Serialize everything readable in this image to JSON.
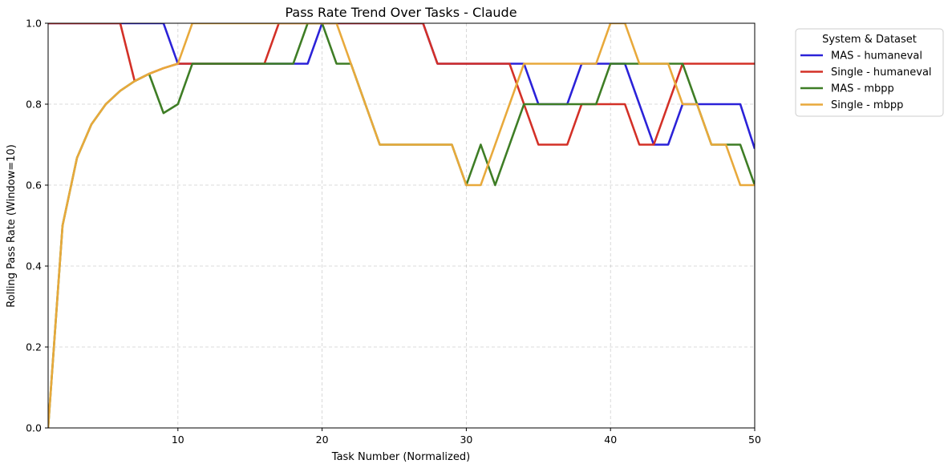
{
  "chart_data": {
    "type": "line",
    "title": "Pass Rate Trend Over Tasks - Claude",
    "xlabel": "Task Number (Normalized)",
    "ylabel": "Rolling Pass Rate (Window=10)",
    "xlim": [
      1,
      50
    ],
    "ylim": [
      0.0,
      1.0
    ],
    "xticks": [
      10,
      20,
      30,
      40,
      50
    ],
    "yticks": [
      0.0,
      0.2,
      0.4,
      0.6,
      0.8,
      1.0
    ],
    "xtick_labels": [
      "10",
      "20",
      "30",
      "40",
      "50"
    ],
    "ytick_labels": [
      "0.0",
      "0.2",
      "0.4",
      "0.6",
      "0.8",
      "1.0"
    ],
    "grid": true,
    "legend": {
      "title": "System & Dataset",
      "placement": "outside-upper-right"
    },
    "x": [
      1,
      2,
      3,
      4,
      5,
      6,
      7,
      8,
      9,
      10,
      11,
      12,
      13,
      14,
      15,
      16,
      17,
      18,
      19,
      20,
      21,
      22,
      23,
      24,
      25,
      26,
      27,
      28,
      29,
      30,
      31,
      32,
      33,
      34,
      35,
      36,
      37,
      38,
      39,
      40,
      41,
      42,
      43,
      44,
      45,
      46,
      47,
      48,
      49,
      50
    ],
    "series": [
      {
        "name": "MAS - humaneval",
        "color": "#2b22d8",
        "values": [
          1.0,
          1.0,
          1.0,
          1.0,
          1.0,
          1.0,
          1.0,
          1.0,
          1.0,
          0.9,
          0.9,
          0.9,
          0.9,
          0.9,
          0.9,
          0.9,
          0.9,
          0.9,
          0.9,
          1.0,
          1.0,
          1.0,
          1.0,
          1.0,
          1.0,
          1.0,
          1.0,
          0.9,
          0.9,
          0.9,
          0.9,
          0.9,
          0.9,
          0.9,
          0.8,
          0.8,
          0.8,
          0.9,
          0.9,
          0.9,
          0.9,
          0.8,
          0.7,
          0.7,
          0.8,
          0.8,
          0.8,
          0.8,
          0.8,
          0.69
        ]
      },
      {
        "name": "Single - humaneval",
        "color": "#d33027",
        "values": [
          1.0,
          1.0,
          1.0,
          1.0,
          1.0,
          1.0,
          0.857,
          0.875,
          0.889,
          0.9,
          0.9,
          0.9,
          0.9,
          0.9,
          0.9,
          0.9,
          1.0,
          1.0,
          1.0,
          1.0,
          1.0,
          1.0,
          1.0,
          1.0,
          1.0,
          1.0,
          1.0,
          0.9,
          0.9,
          0.9,
          0.9,
          0.9,
          0.9,
          0.8,
          0.7,
          0.7,
          0.7,
          0.8,
          0.8,
          0.8,
          0.8,
          0.7,
          0.7,
          0.8,
          0.9,
          0.9,
          0.9,
          0.9,
          0.9,
          0.9
        ]
      },
      {
        "name": "MAS - mbpp",
        "color": "#3e7d25",
        "values": [
          0.0,
          0.5,
          0.667,
          0.75,
          0.8,
          0.833,
          0.857,
          0.875,
          0.778,
          0.8,
          0.9,
          0.9,
          0.9,
          0.9,
          0.9,
          0.9,
          0.9,
          0.9,
          1.0,
          1.0,
          0.9,
          0.9,
          0.8,
          0.7,
          0.7,
          0.7,
          0.7,
          0.7,
          0.7,
          0.6,
          0.7,
          0.6,
          0.7,
          0.8,
          0.8,
          0.8,
          0.8,
          0.8,
          0.8,
          0.9,
          0.9,
          0.9,
          0.9,
          0.9,
          0.9,
          0.8,
          0.7,
          0.7,
          0.7,
          0.6
        ]
      },
      {
        "name": "Single - mbpp",
        "color": "#e8a93b",
        "values": [
          0.0,
          0.5,
          0.667,
          0.75,
          0.8,
          0.833,
          0.857,
          0.875,
          0.889,
          0.9,
          1.0,
          1.0,
          1.0,
          1.0,
          1.0,
          1.0,
          1.0,
          1.0,
          1.0,
          1.0,
          1.0,
          0.9,
          0.8,
          0.7,
          0.7,
          0.7,
          0.7,
          0.7,
          0.7,
          0.6,
          0.6,
          0.7,
          0.8,
          0.9,
          0.9,
          0.9,
          0.9,
          0.9,
          0.9,
          1.0,
          1.0,
          0.9,
          0.9,
          0.9,
          0.8,
          0.8,
          0.7,
          0.7,
          0.6,
          0.6
        ]
      }
    ]
  }
}
